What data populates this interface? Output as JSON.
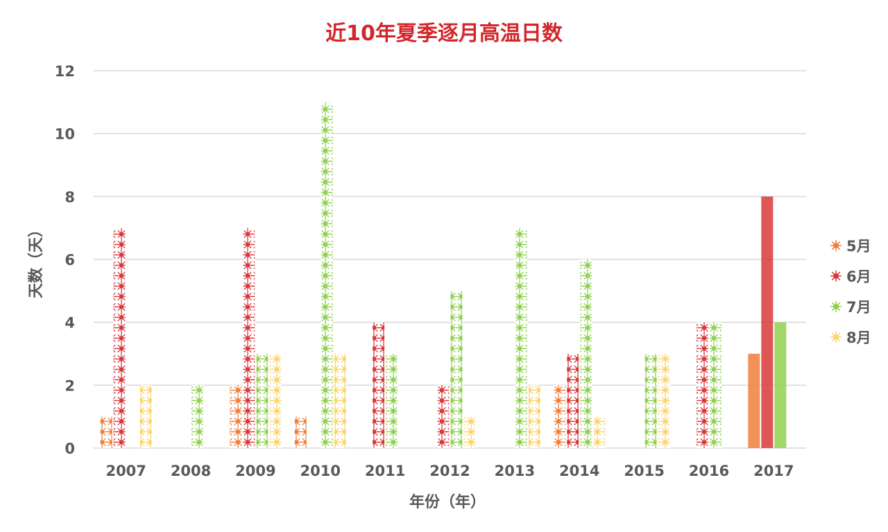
{
  "chart_data": {
    "type": "bar",
    "title": "近10年夏季逐月高温日数",
    "xlabel": "年份（年）",
    "ylabel": "天数（天）",
    "ylim": [
      0,
      12
    ],
    "yticks": [
      0,
      2,
      4,
      6,
      8,
      10,
      12
    ],
    "grid": true,
    "legend_position": "right",
    "categories": [
      "2007",
      "2008",
      "2009",
      "2010",
      "2011",
      "2012",
      "2013",
      "2014",
      "2015",
      "2016",
      "2017"
    ],
    "series": [
      {
        "name": "5月",
        "color": "#f07f3c",
        "values": [
          1,
          0,
          2,
          1,
          0,
          0,
          0,
          2,
          0,
          0,
          3
        ]
      },
      {
        "name": "6月",
        "color": "#d9383a",
        "values": [
          7,
          0,
          7,
          0,
          4,
          2,
          0,
          3,
          0,
          4,
          8
        ]
      },
      {
        "name": "7月",
        "color": "#8fd14f",
        "values": [
          0,
          2,
          3,
          11,
          3,
          5,
          7,
          6,
          3,
          4,
          4
        ]
      },
      {
        "name": "8月",
        "color": "#fcd46b",
        "values": [
          2,
          0,
          3,
          3,
          0,
          1,
          2,
          1,
          3,
          0,
          0
        ]
      }
    ]
  }
}
